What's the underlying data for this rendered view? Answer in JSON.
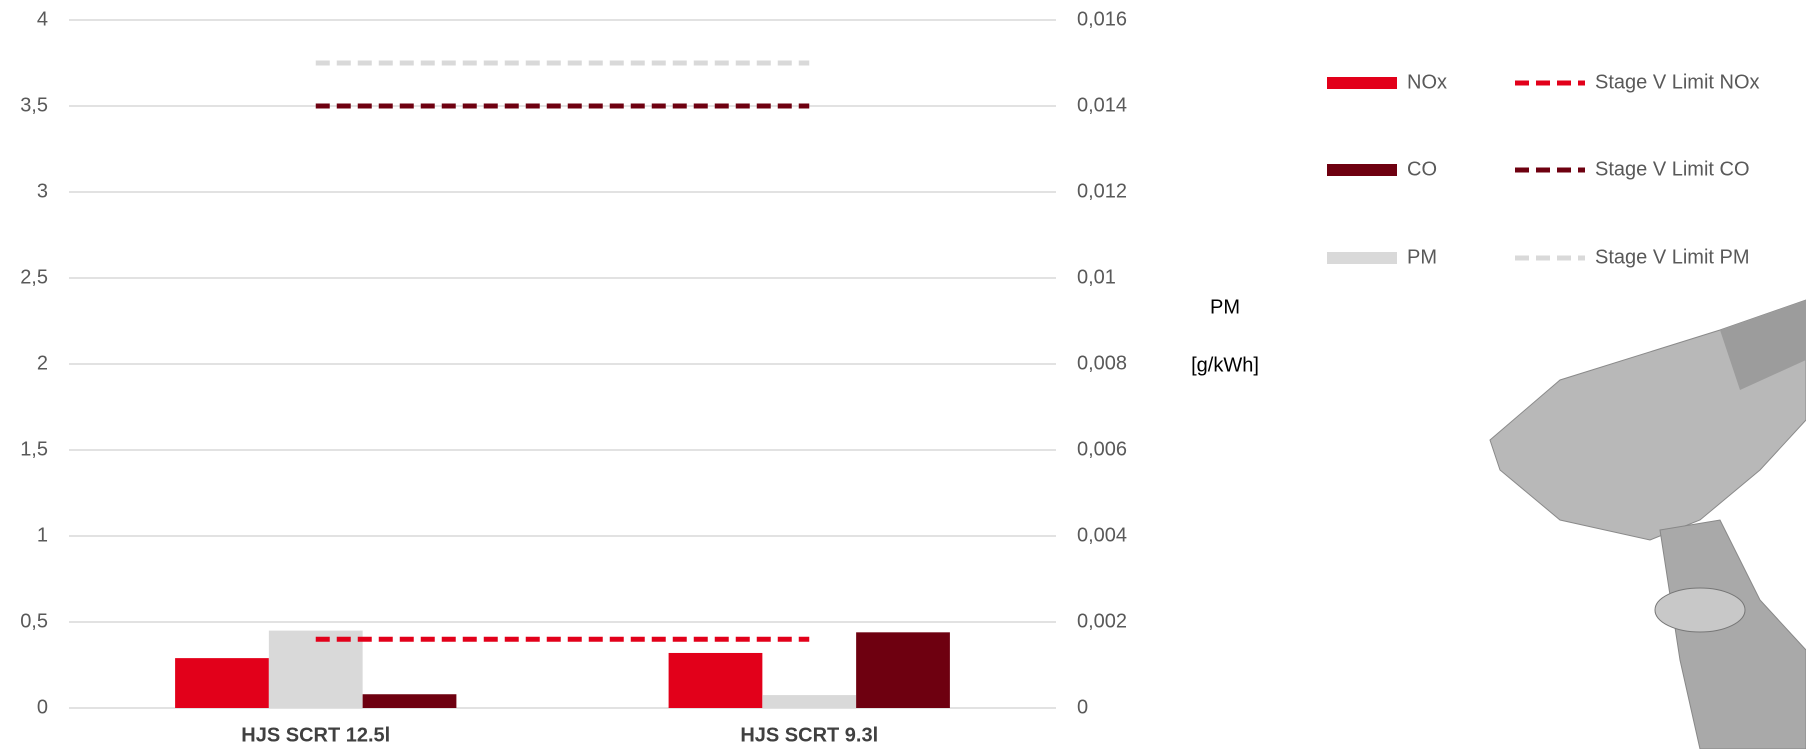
{
  "chart_data": {
    "type": "bar",
    "categories": [
      "HJS SCRT 12.5l",
      "HJS SCRT 9.3l"
    ],
    "series": [
      {
        "name": "NOx",
        "color": "#e2001a",
        "type": "bar",
        "values": [
          0.29,
          0.32
        ]
      },
      {
        "name": "PM",
        "color": "#d9d9d9",
        "type": "bar",
        "axis": "y2",
        "values": [
          0.0018,
          0.0003
        ]
      },
      {
        "name": "CO",
        "color": "#6e0010",
        "type": "bar",
        "values": [
          0.08,
          0.44
        ]
      },
      {
        "name": "Stage V Limit NOx",
        "color": "#e2001a",
        "type": "line",
        "dashed": true,
        "values": [
          0.4,
          0.4
        ]
      },
      {
        "name": "Stage V Limit CO",
        "color": "#6e0010",
        "type": "line",
        "dashed": true,
        "values": [
          3.5,
          3.5
        ]
      },
      {
        "name": "Stage V Limit PM",
        "color": "#d9d9d9",
        "type": "line",
        "dashed": true,
        "axis": "y2",
        "values": [
          0.015,
          0.015
        ]
      }
    ],
    "ylim": [
      0,
      4
    ],
    "yticks": [
      0,
      {
        "value": 0.5,
        "label": "0,5"
      },
      1,
      {
        "value": 1.5,
        "label": "1,5"
      },
      2,
      {
        "value": 2.5,
        "label": "2,5"
      },
      3,
      {
        "value": 3.5,
        "label": "3,5"
      },
      4
    ],
    "y2lim": [
      0,
      0.016
    ],
    "y2ticks": [
      0,
      {
        "value": 0.002,
        "label": "0,002"
      },
      {
        "value": 0.004,
        "label": "0,004"
      },
      {
        "value": 0.006,
        "label": "0,006"
      },
      {
        "value": 0.008,
        "label": "0,008"
      },
      {
        "value": 0.01,
        "label": "0,01"
      },
      {
        "value": 0.012,
        "label": "0,012"
      },
      {
        "value": 0.014,
        "label": "0,014"
      },
      {
        "value": 0.016,
        "label": "0,016"
      }
    ],
    "y2label": "PM",
    "y2unit": "[g/kWh]",
    "grid": true
  }
}
